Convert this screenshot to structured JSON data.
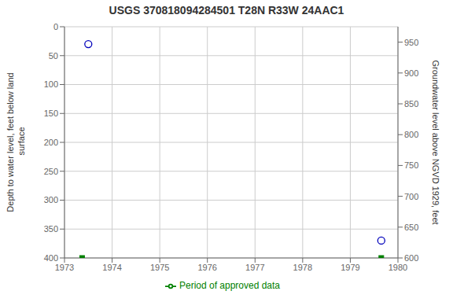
{
  "chart_data": {
    "type": "scatter",
    "title": "USGS 370818094284501 T28N R33W 24AAC1",
    "y_label": "Depth to water level, feet below land\n surface",
    "y2_label": "Groundwater level above NGVD 1929, feet",
    "xlim": [
      1973,
      1980
    ],
    "xticks": [
      1973,
      1974,
      1975,
      1976,
      1977,
      1978,
      1979,
      1980
    ],
    "ylim": [
      400,
      0
    ],
    "yticks": [
      0,
      50,
      100,
      150,
      200,
      250,
      300,
      350,
      400
    ],
    "y2lim": [
      600,
      975
    ],
    "y2ticks": [
      600,
      650,
      700,
      750,
      800,
      850,
      900,
      950
    ],
    "grid": true,
    "series": [
      {
        "x": [
          1973.5,
          1979.65
        ],
        "values": [
          30,
          370
        ],
        "color": "#0000bb",
        "marker": "circle"
      },
      {
        "name": "Period of approved data",
        "x": [
          1973.37,
          1979.65
        ],
        "values": [
          400,
          400
        ],
        "color": "#008000",
        "marker": "square"
      }
    ]
  }
}
